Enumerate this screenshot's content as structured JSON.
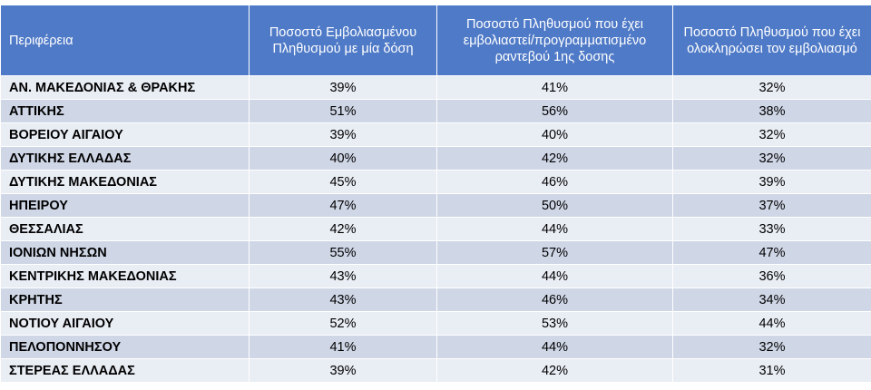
{
  "table": {
    "headers": [
      "Περιφέρεια",
      "Ποσοστό Εμβολιασμένου Πληθυσμού με μία δόση",
      "Ποσοστό Πληθυσμού  που έχει εμβολιαστεί/προγραμματισμένο ραντεβού 1ης δοσης",
      "Ποσοστό Πληθυσμού που έχει ολοκληρώσει τον εμβολιασμό"
    ],
    "rows": [
      [
        "ΑΝ. ΜΑΚΕΔΟΝΙΑΣ & ΘΡΑΚΗΣ",
        "39%",
        "41%",
        "32%"
      ],
      [
        "ΑΤΤΙΚΗΣ",
        "51%",
        "56%",
        "38%"
      ],
      [
        "ΒΟΡΕΙΟΥ ΑΙΓΑΙΟΥ",
        "39%",
        "40%",
        "32%"
      ],
      [
        "ΔΥΤΙΚΗΣ ΕΛΛΑΔΑΣ",
        "40%",
        "42%",
        "32%"
      ],
      [
        "ΔΥΤΙΚΗΣ ΜΑΚΕΔΟΝΙΑΣ",
        "45%",
        "46%",
        "39%"
      ],
      [
        "ΗΠΕΙΡΟΥ",
        "47%",
        "50%",
        "37%"
      ],
      [
        "ΘΕΣΣΑΛΙΑΣ",
        "42%",
        "44%",
        "33%"
      ],
      [
        "ΙΟΝΙΩΝ ΝΗΣΩΝ",
        "55%",
        "57%",
        "47%"
      ],
      [
        "ΚΕΝΤΡΙΚΗΣ ΜΑΚΕΔΟΝΙΑΣ",
        "43%",
        "44%",
        "36%"
      ],
      [
        "ΚΡΗΤΗΣ",
        "43%",
        "46%",
        "34%"
      ],
      [
        "ΝΟΤΙΟΥ ΑΙΓΑΙΟΥ",
        "52%",
        "53%",
        "44%"
      ],
      [
        "ΠΕΛΟΠΟΝΝΗΣΟΥ",
        "41%",
        "44%",
        "32%"
      ],
      [
        "ΣΤΕΡΕΑΣ ΕΛΛΑΔΑΣ",
        "39%",
        "42%",
        "31%"
      ]
    ]
  },
  "colors": {
    "header_bg": "#4f7ac7",
    "row_light": "#e9edf4",
    "row_dark": "#cfd6e6"
  }
}
